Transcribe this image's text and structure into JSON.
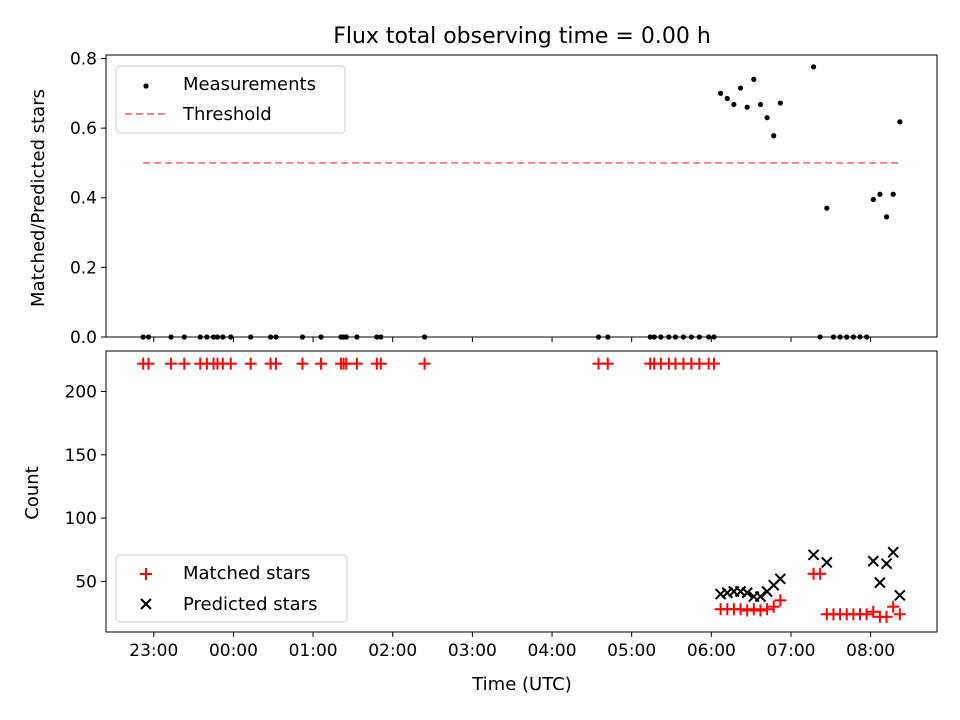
{
  "figure": {
    "title": "Flux total observing time = 0.00 h"
  },
  "chart_data": [
    {
      "type": "scatter",
      "ylabel": "Matched/Predicted stars",
      "xlabel": "",
      "xlim": [
        "22:24",
        "08:50"
      ],
      "ylim": [
        0,
        0.81
      ],
      "yticks": [
        "0.0",
        "0.2",
        "0.4",
        "0.6",
        "0.8"
      ],
      "legend_position": "upper-left",
      "series": [
        {
          "name": "Measurements",
          "marker": "dot",
          "color": "#000000",
          "x": [
            "22:52",
            "22:56",
            "23:13",
            "23:23",
            "23:35",
            "23:40",
            "23:45",
            "23:48",
            "23:52",
            "23:58",
            "00:13",
            "00:28",
            "00:32",
            "00:52",
            "01:06",
            "01:21",
            "01:23",
            "01:25",
            "01:33",
            "01:48",
            "01:51",
            "02:24",
            "04:35",
            "04:42",
            "05:14",
            "05:17",
            "05:22",
            "05:28",
            "05:33",
            "05:39",
            "05:45",
            "05:51",
            "05:58",
            "06:02",
            "06:07",
            "06:12",
            "06:17",
            "06:22",
            "06:27",
            "06:32",
            "06:37",
            "06:42",
            "06:47",
            "06:52",
            "07:17",
            "07:22",
            "07:27",
            "07:32",
            "07:37",
            "07:42",
            "07:47",
            "07:52",
            "07:57",
            "08:02",
            "08:07",
            "08:12",
            "08:17",
            "08:22"
          ],
          "y": [
            0,
            0,
            0,
            0,
            0,
            0,
            0,
            0,
            0,
            0,
            0,
            0,
            0,
            0,
            0,
            0,
            0,
            0,
            0,
            0,
            0,
            0,
            0,
            0,
            0,
            0,
            0,
            0,
            0,
            0,
            0,
            0,
            0,
            0,
            0.7,
            0.685,
            0.668,
            0.715,
            0.66,
            0.74,
            0.668,
            0.63,
            0.578,
            0.672,
            0.776,
            0,
            0.37,
            0,
            0,
            0,
            0,
            0,
            0,
            0.395,
            0.41,
            0.345,
            0.41,
            0.618
          ]
        }
      ],
      "lines": [
        {
          "name": "Threshold",
          "style": "dashed",
          "color": "#ff8080",
          "x": [
            "22:52",
            "08:22"
          ],
          "y": [
            0.5,
            0.5
          ]
        }
      ]
    },
    {
      "type": "scatter",
      "ylabel": "Count",
      "xlabel": "Time (UTC)",
      "xlim": [
        "22:24",
        "08:50"
      ],
      "ylim": [
        10,
        232
      ],
      "yticks": [
        "50",
        "100",
        "150",
        "200"
      ],
      "xticks": [
        "23:00",
        "00:00",
        "01:00",
        "02:00",
        "03:00",
        "04:00",
        "05:00",
        "06:00",
        "07:00",
        "08:00"
      ],
      "legend_position": "lower-left",
      "series": [
        {
          "name": "Matched stars",
          "marker": "plus",
          "color": "#ff0000",
          "x": [
            "22:52",
            "22:56",
            "23:13",
            "23:23",
            "23:35",
            "23:40",
            "23:45",
            "23:48",
            "23:52",
            "23:58",
            "00:13",
            "00:28",
            "00:32",
            "00:52",
            "01:06",
            "01:21",
            "01:23",
            "01:25",
            "01:33",
            "01:48",
            "01:51",
            "02:24",
            "04:35",
            "04:42",
            "05:14",
            "05:17",
            "05:22",
            "05:28",
            "05:33",
            "05:39",
            "05:45",
            "05:51",
            "05:58",
            "06:02",
            "06:07",
            "06:12",
            "06:17",
            "06:22",
            "06:27",
            "06:32",
            "06:37",
            "06:42",
            "06:47",
            "06:52",
            "07:17",
            "07:22",
            "07:27",
            "07:32",
            "07:37",
            "07:42",
            "07:47",
            "07:52",
            "07:57",
            "08:02",
            "08:07",
            "08:12",
            "08:17",
            "08:22"
          ],
          "y": [
            222,
            222,
            222,
            222,
            222,
            222,
            222,
            222,
            222,
            222,
            222,
            222,
            222,
            222,
            222,
            222,
            222,
            222,
            222,
            222,
            222,
            222,
            222,
            222,
            222,
            222,
            222,
            222,
            222,
            222,
            222,
            222,
            222,
            222,
            28,
            28,
            28,
            28,
            27,
            28,
            27,
            28,
            30,
            35,
            56,
            56,
            24,
            24,
            24,
            24,
            24,
            24,
            24,
            26,
            22,
            22,
            30,
            24
          ]
        },
        {
          "name": "Predicted stars",
          "marker": "x",
          "color": "#000000",
          "x": [
            "06:07",
            "06:12",
            "06:17",
            "06:22",
            "06:27",
            "06:32",
            "06:37",
            "06:42",
            "06:47",
            "06:52",
            "07:17",
            "07:27",
            "08:02",
            "08:07",
            "08:12",
            "08:17",
            "08:22"
          ],
          "y": [
            40,
            41,
            42,
            42,
            41,
            38,
            38,
            42,
            47,
            52,
            71,
            65,
            66,
            49,
            64,
            73,
            39
          ]
        }
      ]
    }
  ]
}
